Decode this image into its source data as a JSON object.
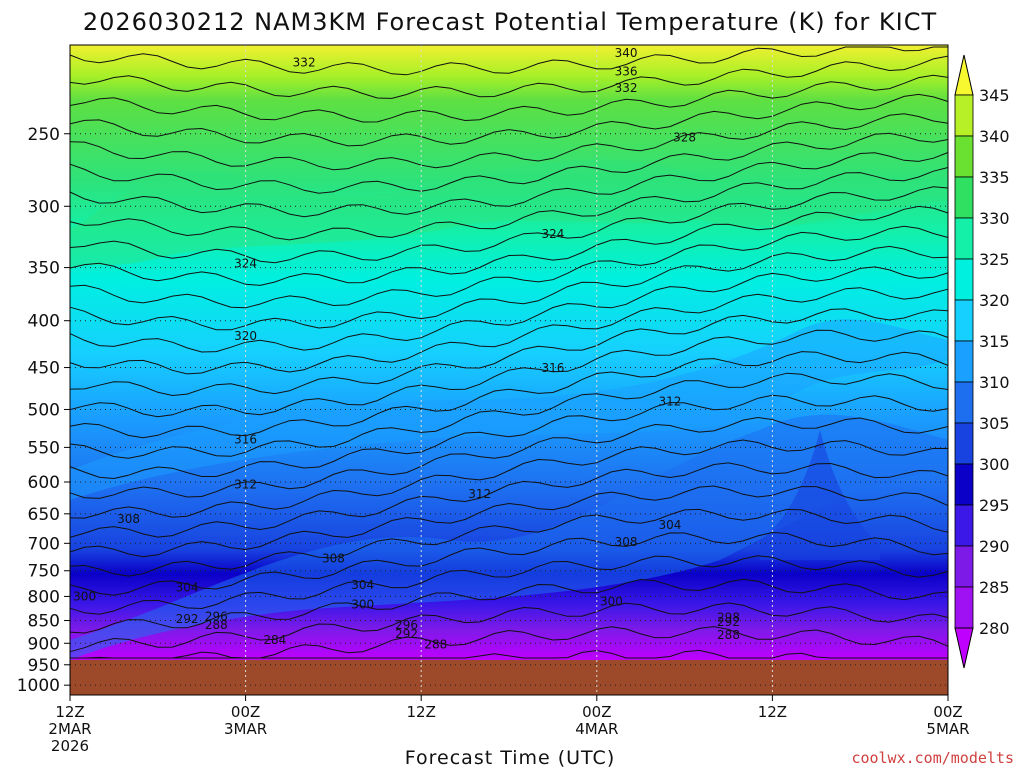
{
  "chart_data": {
    "type": "heatmap",
    "title": "2026030212 NAM3KM Forecast Potential Temperature (K) for KICT",
    "xlabel": "Forecast Time (UTC)",
    "ylabel": "",
    "x_ticks": [
      {
        "hour": 0,
        "l1": "12Z",
        "l2": "2MAR",
        "l3": "2026"
      },
      {
        "hour": 12,
        "l1": "00Z",
        "l2": "3MAR",
        "l3": ""
      },
      {
        "hour": 24,
        "l1": "12Z",
        "l2": "",
        "l3": ""
      },
      {
        "hour": 36,
        "l1": "00Z",
        "l2": "4MAR",
        "l3": ""
      },
      {
        "hour": 48,
        "l1": "12Z",
        "l2": "",
        "l3": ""
      },
      {
        "hour": 60,
        "l1": "00Z",
        "l2": "5MAR",
        "l3": ""
      }
    ],
    "xlim": [
      0,
      60
    ],
    "y_ticks": [
      250,
      300,
      350,
      400,
      450,
      500,
      550,
      600,
      650,
      700,
      750,
      800,
      850,
      900,
      950,
      1000
    ],
    "ylim_hpa": [
      200,
      1025
    ],
    "ground_hpa": 960,
    "colorbar": {
      "levels": [
        280,
        285,
        290,
        295,
        300,
        305,
        310,
        315,
        320,
        325,
        330,
        335,
        340,
        345
      ],
      "labels": [
        "345",
        "340",
        "335",
        "330",
        "325",
        "320",
        "315",
        "310",
        "305",
        "300",
        "295",
        "290",
        "285",
        "280"
      ],
      "colors": [
        "#c000ff",
        "#9f10f2",
        "#7d1ae8",
        "#3b17e8",
        "#0a00c8",
        "#1843e0",
        "#1e6ff0",
        "#1aa0ff",
        "#16d0ff",
        "#00f0e0",
        "#14f0a8",
        "#30e060",
        "#6ae030",
        "#b8f028",
        "#f8f830"
      ]
    },
    "contour_labels": [
      {
        "text": "340",
        "hour": 38,
        "hpa": 206
      },
      {
        "text": "332",
        "hour": 16,
        "hpa": 211
      },
      {
        "text": "336",
        "hour": 38,
        "hpa": 216
      },
      {
        "text": "332",
        "hour": 38,
        "hpa": 225
      },
      {
        "text": "328",
        "hour": 42,
        "hpa": 255
      },
      {
        "text": "324",
        "hour": 33,
        "hpa": 325
      },
      {
        "text": "324",
        "hour": 12,
        "hpa": 350
      },
      {
        "text": "320",
        "hour": 12,
        "hpa": 420
      },
      {
        "text": "316",
        "hour": 33,
        "hpa": 455
      },
      {
        "text": "312",
        "hour": 41,
        "hpa": 495
      },
      {
        "text": "316",
        "hour": 12,
        "hpa": 545
      },
      {
        "text": "312",
        "hour": 12,
        "hpa": 610
      },
      {
        "text": "312",
        "hour": 28,
        "hpa": 625
      },
      {
        "text": "308",
        "hour": 4,
        "hpa": 665
      },
      {
        "text": "304",
        "hour": 41,
        "hpa": 675
      },
      {
        "text": "308",
        "hour": 38,
        "hpa": 705
      },
      {
        "text": "308",
        "hour": 18,
        "hpa": 735
      },
      {
        "text": "304",
        "hour": 20,
        "hpa": 785
      },
      {
        "text": "304",
        "hour": 8,
        "hpa": 790
      },
      {
        "text": "300",
        "hour": 1,
        "hpa": 808
      },
      {
        "text": "300",
        "hour": 20,
        "hpa": 825
      },
      {
        "text": "300",
        "hour": 37,
        "hpa": 818
      },
      {
        "text": "296",
        "hour": 10,
        "hpa": 850
      },
      {
        "text": "292",
        "hour": 8,
        "hpa": 855
      },
      {
        "text": "288",
        "hour": 10,
        "hpa": 868
      },
      {
        "text": "296",
        "hour": 23,
        "hpa": 868
      },
      {
        "text": "298",
        "hour": 45,
        "hpa": 852
      },
      {
        "text": "292",
        "hour": 45,
        "hpa": 862
      },
      {
        "text": "292",
        "hour": 23,
        "hpa": 888
      },
      {
        "text": "288",
        "hour": 45,
        "hpa": 890
      },
      {
        "text": "284",
        "hour": 14,
        "hpa": 902
      },
      {
        "text": "288",
        "hour": 25,
        "hpa": 912
      }
    ]
  },
  "credit": "coolwx.com/modelts"
}
